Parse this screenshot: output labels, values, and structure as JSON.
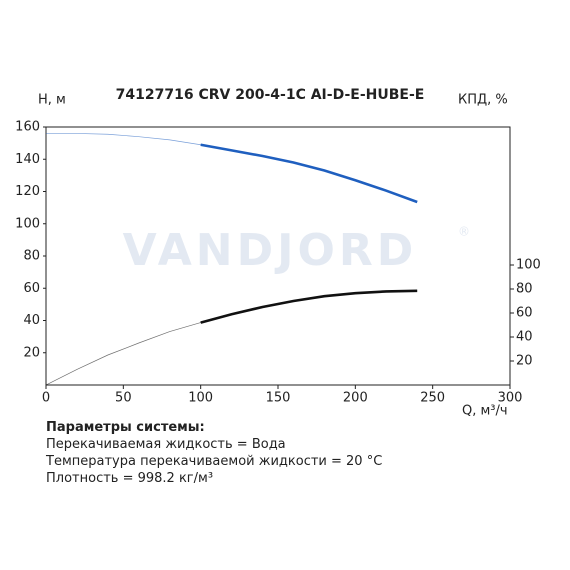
{
  "chart_data": {
    "type": "line",
    "title": "74127716 CRV 200-4-1C AI-D-E-HUBE-E",
    "watermark": "VANDJORD",
    "watermark_mark": "®",
    "ylabel": "H, м",
    "y2label": "КПД, %",
    "xlabel": "Q, м³/ч",
    "x": [
      0,
      20,
      40,
      60,
      80,
      100,
      120,
      140,
      160,
      180,
      200,
      220,
      240
    ],
    "series": [
      {
        "color": "#1f5fbf",
        "values": [
          156,
          156,
          155.5,
          154,
          152,
          149,
          145.5,
          142,
          138,
          133,
          127,
          120.5,
          113.5
        ]
      },
      {
        "color": "#111111",
        "axis": "y2",
        "values": [
          0,
          13,
          25,
          35,
          44.5,
          52,
          59,
          65,
          70,
          74,
          76.5,
          78,
          78.5
        ]
      }
    ],
    "operating_range": [
      100,
      240
    ],
    "xlim": [
      0,
      300
    ],
    "xticks": [
      0,
      50,
      100,
      150,
      200,
      250,
      300
    ],
    "ylim": [
      0,
      160
    ],
    "yticks": [
      20,
      40,
      60,
      80,
      100,
      120,
      140,
      160
    ],
    "y2lim": [
      0,
      215
    ],
    "y2ticks": [
      20,
      40,
      60,
      80,
      100
    ],
    "annotations": [
      "Параметры системы:",
      "Перекачиваемая жидкость = Вода",
      "Температура перекачиваемой жидкости = 20 °C",
      "Плотность = 998.2 кг/м³"
    ]
  }
}
